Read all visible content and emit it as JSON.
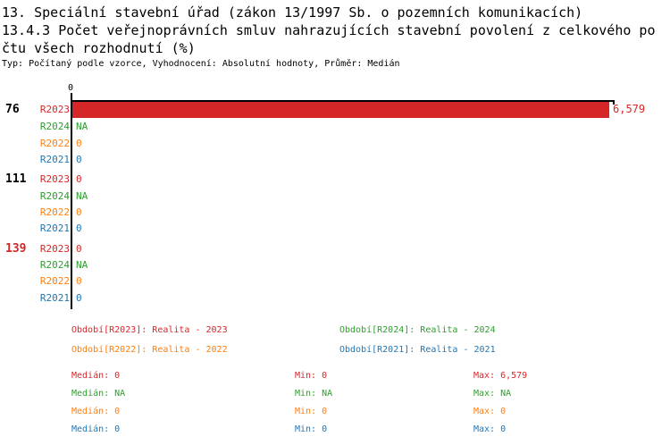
{
  "header": {
    "title_line1": "13. Speciální stavební úřad (zákon 13/1997 Sb. o pozemních komunikacích)",
    "title_line2": "13.4.3 Počet veřejnoprávních smluv nahrazujících stavební povolení z celkového po",
    "title_line3": "čtu všech rozhodnutí (%)",
    "meta": "Typ: Počítaný podle vzorce, Vyhodnocení: Absolutní hodnoty, Průměr: Medián"
  },
  "colors": {
    "r2023": "#d62728",
    "r2024": "#2ca02c",
    "r2022": "#ff7f0e",
    "r2021": "#1f77b4",
    "axis": "#000000",
    "highlight_group": "#d62728"
  },
  "chart_data": {
    "type": "bar",
    "orientation": "horizontal-grouped",
    "value_axis": {
      "zero_label": "0",
      "min": 0,
      "max_plotted": 6.579
    },
    "series_order": [
      "R2023",
      "R2024",
      "R2022",
      "R2021"
    ],
    "groups": [
      {
        "label": "76",
        "rows": [
          {
            "series": "R2023",
            "display": "6,579",
            "value": 6.579
          },
          {
            "series": "R2024",
            "display": "NA",
            "value": null
          },
          {
            "series": "R2022",
            "display": "0",
            "value": 0
          },
          {
            "series": "R2021",
            "display": "0",
            "value": 0
          }
        ]
      },
      {
        "label": "111",
        "rows": [
          {
            "series": "R2023",
            "display": "0",
            "value": 0
          },
          {
            "series": "R2024",
            "display": "NA",
            "value": null
          },
          {
            "series": "R2022",
            "display": "0",
            "value": 0
          },
          {
            "series": "R2021",
            "display": "0",
            "value": 0
          }
        ]
      },
      {
        "label": "139",
        "rows": [
          {
            "series": "R2023",
            "display": "0",
            "value": 0
          },
          {
            "series": "R2024",
            "display": "NA",
            "value": null
          },
          {
            "series": "R2022",
            "display": "0",
            "value": 0
          },
          {
            "series": "R2021",
            "display": "0",
            "value": 0
          }
        ]
      }
    ]
  },
  "legend": {
    "items": [
      {
        "label": "Období[R2023]: Realita - 2023"
      },
      {
        "label": "Období[R2024]: Realita - 2024"
      },
      {
        "label": "Období[R2022]: Realita - 2022"
      },
      {
        "label": "Období[R2021]: Realita - 2021"
      }
    ]
  },
  "stats": {
    "rows": [
      {
        "median": "Medián: 0",
        "min": "Min: 0",
        "max": "Max: 6,579"
      },
      {
        "median": "Medián: NA",
        "min": "Min: NA",
        "max": "Max: NA"
      },
      {
        "median": "Medián: 0",
        "min": "Min: 0",
        "max": "Max: 0"
      },
      {
        "median": "Medián: 0",
        "min": "Min: 0",
        "max": "Max: 0"
      }
    ]
  }
}
